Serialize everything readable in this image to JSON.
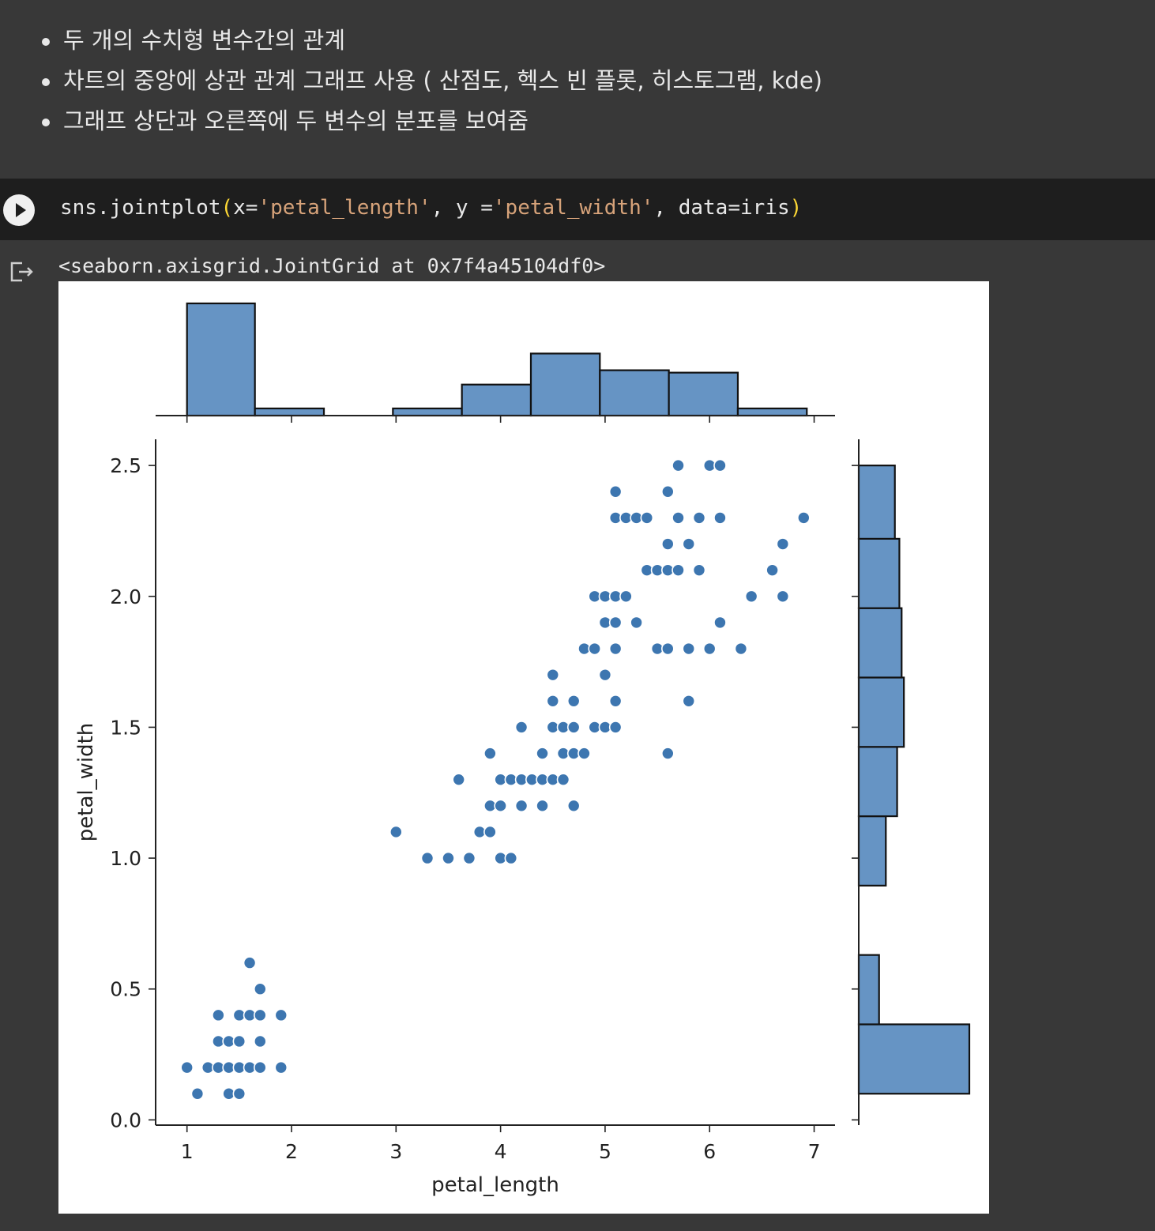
{
  "markdown": {
    "bullets": [
      "두 개의 수치형 변수간의 관계",
      "차트의 중앙에 상관 관계 그래프 사용 ( 산점도, 헥스 빈 플롯, 히스토그램, kde)",
      "그래프 상단과 오른쪽에 두 변수의 분포를 보여줌"
    ]
  },
  "code_cell": {
    "tokens": [
      {
        "t": "sns.jointplot",
        "c": "plain"
      },
      {
        "t": "(",
        "c": "paren"
      },
      {
        "t": "x=",
        "c": "plain"
      },
      {
        "t": "'petal_length'",
        "c": "str"
      },
      {
        "t": ", y =",
        "c": "plain"
      },
      {
        "t": "'petal_width'",
        "c": "str"
      },
      {
        "t": ", data=iris",
        "c": "plain"
      },
      {
        "t": ")",
        "c": "paren"
      }
    ]
  },
  "output": {
    "text": "<seaborn.axisgrid.JointGrid at 0x7f4a45104df0>"
  },
  "colors": {
    "point": "#3d76b0",
    "bar_fill": "#6694c4",
    "bar_edge": "#111111"
  },
  "chart_data": {
    "type": "scatter",
    "title": "",
    "xlabel": "petal_length",
    "ylabel": "petal_width",
    "xlim": [
      0.7,
      7.2
    ],
    "ylim": [
      -0.02,
      2.6
    ],
    "xticks": [
      1,
      2,
      3,
      4,
      5,
      6,
      7
    ],
    "yticks": [
      0.0,
      0.5,
      1.0,
      1.5,
      2.0,
      2.5
    ],
    "ytick_labels": [
      "0.0",
      "0.5",
      "1.0",
      "1.5",
      "2.0",
      "2.5"
    ],
    "points": [
      [
        1.0,
        0.2
      ],
      [
        1.1,
        0.1
      ],
      [
        1.2,
        0.2
      ],
      [
        1.3,
        0.2
      ],
      [
        1.4,
        0.2
      ],
      [
        1.5,
        0.2
      ],
      [
        1.6,
        0.2
      ],
      [
        1.7,
        0.2
      ],
      [
        1.9,
        0.2
      ],
      [
        1.4,
        0.1
      ],
      [
        1.5,
        0.1
      ],
      [
        1.3,
        0.3
      ],
      [
        1.4,
        0.3
      ],
      [
        1.5,
        0.3
      ],
      [
        1.7,
        0.3
      ],
      [
        1.3,
        0.4
      ],
      [
        1.5,
        0.4
      ],
      [
        1.6,
        0.4
      ],
      [
        1.7,
        0.4
      ],
      [
        1.9,
        0.4
      ],
      [
        1.7,
        0.5
      ],
      [
        1.6,
        0.6
      ],
      [
        3.0,
        1.1
      ],
      [
        3.3,
        1.0
      ],
      [
        3.5,
        1.0
      ],
      [
        3.7,
        1.0
      ],
      [
        4.0,
        1.0
      ],
      [
        4.1,
        1.0
      ],
      [
        3.8,
        1.1
      ],
      [
        3.9,
        1.1
      ],
      [
        3.9,
        1.2
      ],
      [
        4.0,
        1.2
      ],
      [
        4.2,
        1.2
      ],
      [
        4.4,
        1.2
      ],
      [
        4.7,
        1.2
      ],
      [
        3.6,
        1.3
      ],
      [
        4.0,
        1.3
      ],
      [
        4.1,
        1.3
      ],
      [
        4.2,
        1.3
      ],
      [
        4.3,
        1.3
      ],
      [
        4.4,
        1.3
      ],
      [
        4.5,
        1.3
      ],
      [
        4.6,
        1.3
      ],
      [
        3.9,
        1.4
      ],
      [
        4.4,
        1.4
      ],
      [
        4.6,
        1.4
      ],
      [
        4.7,
        1.4
      ],
      [
        4.8,
        1.4
      ],
      [
        5.6,
        1.4
      ],
      [
        4.2,
        1.5
      ],
      [
        4.5,
        1.5
      ],
      [
        4.6,
        1.5
      ],
      [
        4.7,
        1.5
      ],
      [
        4.9,
        1.5
      ],
      [
        5.0,
        1.5
      ],
      [
        5.1,
        1.5
      ],
      [
        4.5,
        1.6
      ],
      [
        4.7,
        1.6
      ],
      [
        5.1,
        1.6
      ],
      [
        5.8,
        1.6
      ],
      [
        4.5,
        1.7
      ],
      [
        5.0,
        1.7
      ],
      [
        4.8,
        1.8
      ],
      [
        4.9,
        1.8
      ],
      [
        5.1,
        1.8
      ],
      [
        5.5,
        1.8
      ],
      [
        5.6,
        1.8
      ],
      [
        5.8,
        1.8
      ],
      [
        6.0,
        1.8
      ],
      [
        6.3,
        1.8
      ],
      [
        5.0,
        1.9
      ],
      [
        5.1,
        1.9
      ],
      [
        5.3,
        1.9
      ],
      [
        6.1,
        1.9
      ],
      [
        4.9,
        2.0
      ],
      [
        5.0,
        2.0
      ],
      [
        5.1,
        2.0
      ],
      [
        5.2,
        2.0
      ],
      [
        6.4,
        2.0
      ],
      [
        6.7,
        2.0
      ],
      [
        5.4,
        2.1
      ],
      [
        5.5,
        2.1
      ],
      [
        5.6,
        2.1
      ],
      [
        5.7,
        2.1
      ],
      [
        5.9,
        2.1
      ],
      [
        6.6,
        2.1
      ],
      [
        5.6,
        2.2
      ],
      [
        5.8,
        2.2
      ],
      [
        6.7,
        2.2
      ],
      [
        5.1,
        2.3
      ],
      [
        5.2,
        2.3
      ],
      [
        5.3,
        2.3
      ],
      [
        5.4,
        2.3
      ],
      [
        5.7,
        2.3
      ],
      [
        5.9,
        2.3
      ],
      [
        6.1,
        2.3
      ],
      [
        6.9,
        2.3
      ],
      [
        5.1,
        2.4
      ],
      [
        5.6,
        2.4
      ],
      [
        5.7,
        2.5
      ],
      [
        6.0,
        2.5
      ],
      [
        6.1,
        2.5
      ]
    ],
    "marginal_x_hist": {
      "bins": [
        [
          1.0,
          1.65
        ],
        [
          1.65,
          2.31
        ],
        [
          2.31,
          2.97
        ],
        [
          2.97,
          3.63
        ],
        [
          3.63,
          4.29
        ],
        [
          4.29,
          4.95
        ],
        [
          4.95,
          5.61
        ],
        [
          5.61,
          6.27
        ],
        [
          6.27,
          6.93
        ]
      ],
      "counts": [
        47,
        3,
        0,
        3,
        13,
        26,
        19,
        18,
        3
      ]
    },
    "marginal_y_hist": {
      "bins": [
        [
          0.1,
          0.365
        ],
        [
          0.365,
          0.63
        ],
        [
          0.63,
          0.895
        ],
        [
          0.895,
          1.16
        ],
        [
          1.16,
          1.425
        ],
        [
          1.425,
          1.69
        ],
        [
          1.69,
          1.955
        ],
        [
          1.955,
          2.22
        ],
        [
          2.22,
          2.5
        ]
      ],
      "counts": [
        49,
        9,
        0,
        12,
        17,
        20,
        19,
        18,
        16
      ]
    }
  }
}
